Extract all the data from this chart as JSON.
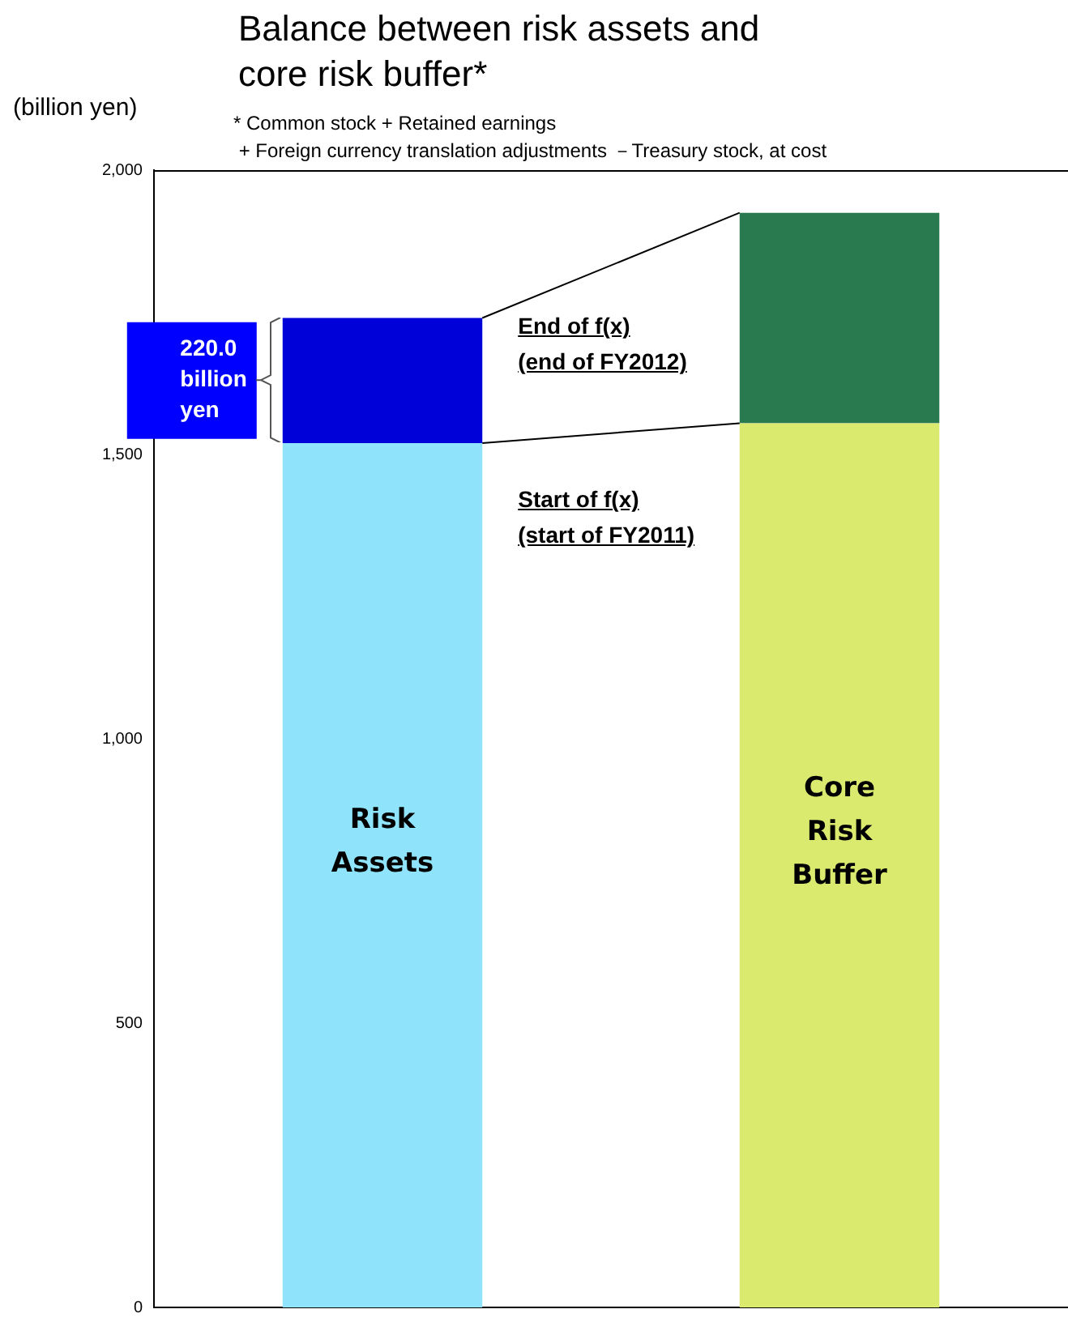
{
  "chart_data": {
    "type": "bar",
    "title": "Balance between risk assets and\ncore risk buffer*",
    "subtitle": "* Common stock + Retained earnings\n + Foreign currency translation adjustments －Treasury stock, at cost",
    "ylabel": "(billion yen)",
    "categories": [
      "Risk Assets",
      "Core Risk Buffer"
    ],
    "stacked": true,
    "series": [
      {
        "name": "Start of f(x)\n(start of FY2011)",
        "colors": [
          "#8fe4fb",
          "#d9ea6e"
        ],
        "values": [
          1520,
          1555
        ]
      },
      {
        "name": "End of f(x)\n(end of FY2012)",
        "colors": [
          "#0000d8",
          "#2a7a50"
        ],
        "values": [
          220,
          370
        ]
      }
    ],
    "annotations": [
      "220.0 billion yen"
    ],
    "ylim": [
      0,
      2000
    ],
    "yticks": [
      {
        "value": 0,
        "label": "0"
      },
      {
        "value": 500,
        "label": "500"
      },
      {
        "value": 1000,
        "label": "1,000"
      },
      {
        "value": 1500,
        "label": "1,500"
      },
      {
        "value": 2000,
        "label": "2,000"
      }
    ],
    "grid": false,
    "legend": false,
    "tick_labels": "y"
  }
}
